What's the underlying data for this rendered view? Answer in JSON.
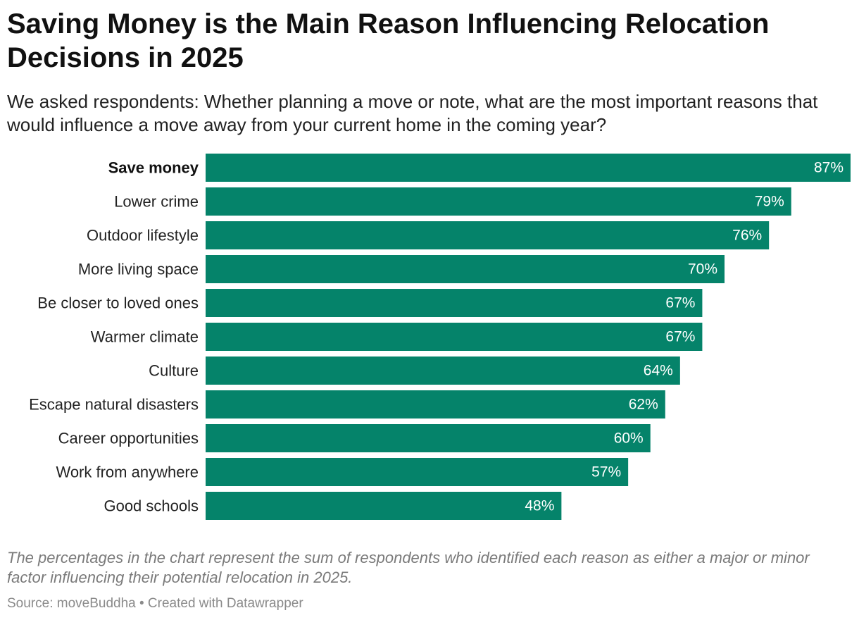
{
  "header": {
    "title": "Saving Money is the Main Reason Influencing Relocation Decisions in 2025",
    "subtitle": "We asked respondents: Whether planning a move or note, what are the most important reasons that would influence a move away from your current home in the coming year?"
  },
  "chart_data": {
    "type": "bar",
    "orientation": "horizontal",
    "title": "Saving Money is the Main Reason Influencing Relocation Decisions in 2025",
    "categories": [
      "Save money",
      "Lower crime",
      "Outdoor lifestyle",
      "More living space",
      "Be closer to loved ones",
      "Warmer climate",
      "Culture",
      "Escape natural disasters",
      "Career opportunities",
      "Work from anywhere",
      "Good schools"
    ],
    "values": [
      87,
      79,
      76,
      70,
      67,
      67,
      64,
      62,
      60,
      57,
      48
    ],
    "value_labels": [
      "87%",
      "79%",
      "76%",
      "70%",
      "67%",
      "67%",
      "64%",
      "62%",
      "60%",
      "57%",
      "48%"
    ],
    "unit": "%",
    "highlighted_category": "Save money",
    "bar_color": "#05836a",
    "xlim": [
      0,
      87
    ],
    "grid": false,
    "legend": "none"
  },
  "footer": {
    "note": "The percentages in the chart represent the sum of respondents who identified each reason as either a major or minor factor influencing their potential relocation in 2025.",
    "source": "Source: moveBuddha • Created with Datawrapper"
  }
}
